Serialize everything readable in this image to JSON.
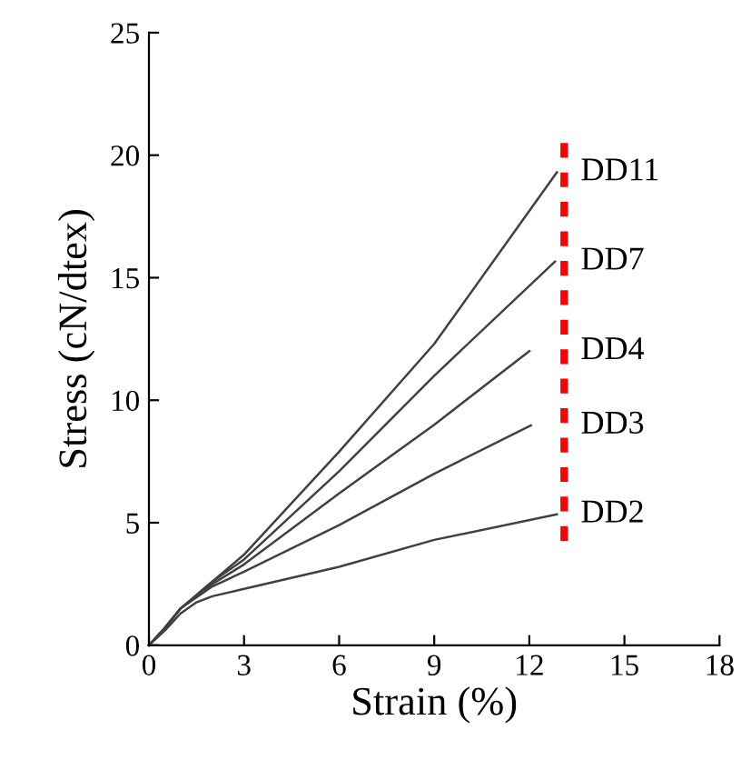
{
  "chart_data": {
    "type": "line",
    "xlabel": "Strain (%)",
    "ylabel": "Stress (cN/dtex)",
    "xlim": [
      0,
      18
    ],
    "ylim": [
      0,
      25
    ],
    "xticks": [
      0,
      3,
      6,
      9,
      12,
      15,
      18
    ],
    "yticks": [
      0,
      5,
      10,
      15,
      20,
      25
    ],
    "grid": false,
    "legend": false,
    "marker": "none",
    "line_style": "solid",
    "series": [
      {
        "name": "DD11",
        "color": "#404040",
        "x": [
          0,
          0.5,
          1,
          2,
          3,
          6,
          9,
          12.87
        ],
        "values": [
          0,
          0.7,
          1.5,
          2.6,
          3.7,
          7.9,
          12.3,
          19.3
        ]
      },
      {
        "name": "DD7",
        "color": "#404040",
        "x": [
          0,
          0.5,
          1,
          2,
          3,
          6,
          9,
          12.81
        ],
        "values": [
          0,
          0.7,
          1.5,
          2.6,
          3.5,
          7.1,
          11.0,
          15.66
        ]
      },
      {
        "name": "DD4",
        "color": "#404040",
        "x": [
          0,
          0.5,
          1,
          2,
          3,
          6,
          9,
          12.0
        ],
        "values": [
          0,
          0.7,
          1.5,
          2.5,
          3.3,
          6.2,
          9.0,
          12.0
        ]
      },
      {
        "name": "DD3",
        "color": "#404040",
        "x": [
          0,
          0.5,
          1,
          2,
          3,
          6,
          9,
          12.05
        ],
        "values": [
          0,
          0.7,
          1.5,
          2.4,
          3.0,
          4.9,
          7.0,
          8.97
        ]
      },
      {
        "name": "DD2",
        "color": "#404040",
        "x": [
          0,
          0.5,
          1,
          1.5,
          2,
          3,
          6,
          9,
          12.87
        ],
        "values": [
          0,
          0.6,
          1.3,
          1.75,
          2.0,
          2.3,
          3.2,
          4.3,
          5.34
        ]
      },
      {
        "color": "#ff0000",
        "line_style": "dotted",
        "x": [
          13.1,
          13.1
        ],
        "values": [
          4.26,
          20.5
        ]
      }
    ]
  }
}
